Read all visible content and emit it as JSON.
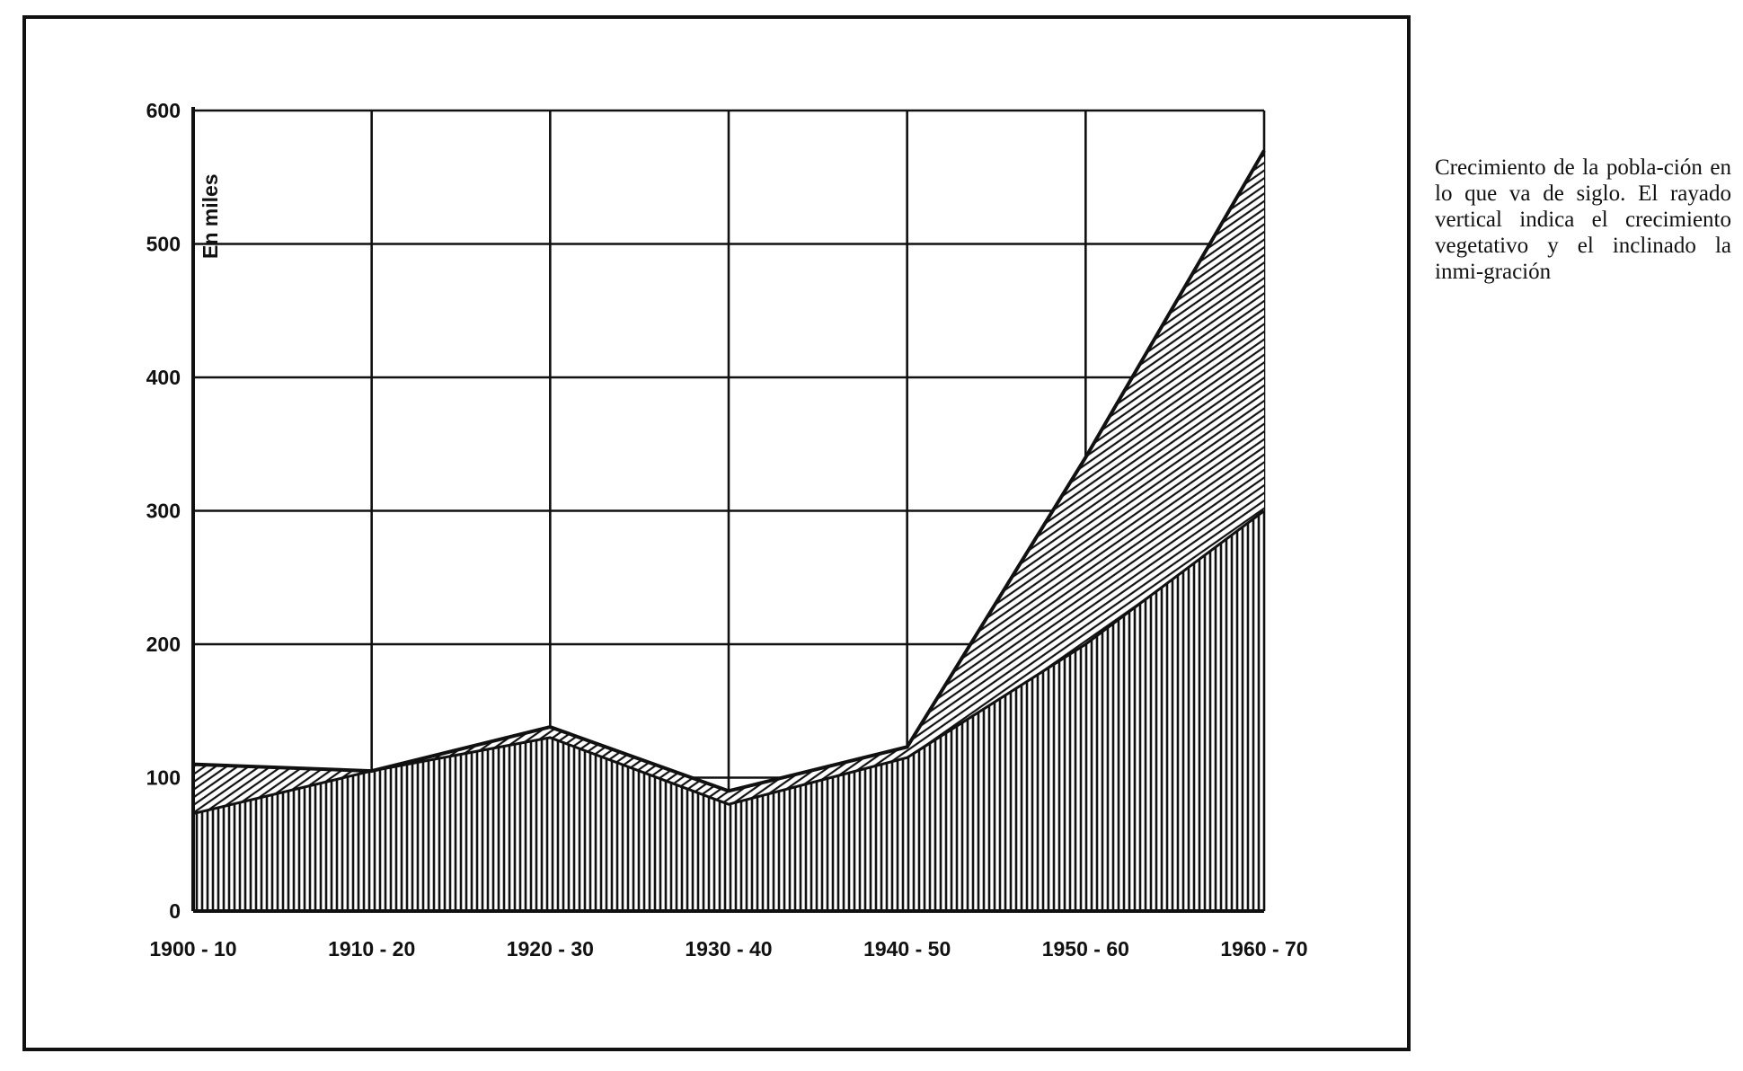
{
  "caption": "Crecimiento de la pobla-ción en lo que va de siglo. El rayado vertical indica el crecimiento vegetativo y el inclinado la inmi-gración",
  "chart_data": {
    "type": "area",
    "title": "",
    "xlabel": "",
    "ylabel": "En miles",
    "categories": [
      "1900 - 10",
      "1910 - 20",
      "1920 - 30",
      "1930 - 40",
      "1940 - 50",
      "1950 - 60",
      "1960 - 70"
    ],
    "ylim": [
      0,
      600
    ],
    "yticks": [
      "0",
      "100",
      "200",
      "300",
      "400",
      "500",
      "600"
    ],
    "grid": true,
    "series": [
      {
        "name": "crecimiento vegetativo",
        "pattern": "vertical",
        "values": [
          73,
          105,
          130,
          80,
          115,
          200,
          300
        ]
      },
      {
        "name": "inmigración",
        "pattern": "inclinado",
        "values": [
          37,
          0,
          8,
          10,
          8,
          140,
          270
        ]
      }
    ],
    "totals": [
      110,
      105,
      138,
      90,
      123,
      340,
      570
    ]
  }
}
